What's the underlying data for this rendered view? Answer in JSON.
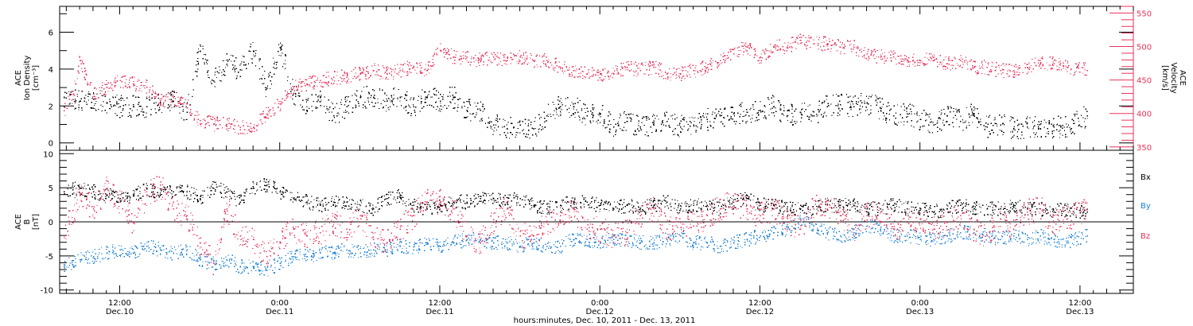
{
  "colors": {
    "black": "#000000",
    "pink": "#e8325a",
    "blue": "#1a7fd4"
  },
  "xaxis": {
    "title": "hours:minutes, Dec. 10, 2011 - Dec. 13, 2011",
    "ticks": [
      {
        "hour": 12,
        "time": "12:00",
        "date": "Dec.10"
      },
      {
        "hour": 24,
        "time": "0:00",
        "date": "Dec.11"
      },
      {
        "hour": 36,
        "time": "12:00",
        "date": "Dec.11"
      },
      {
        "hour": 48,
        "time": "0:00",
        "date": "Dec.12"
      },
      {
        "hour": 60,
        "time": "12:00",
        "date": "Dec.12"
      },
      {
        "hour": 72,
        "time": "0:00",
        "date": "Dec.13"
      },
      {
        "hour": 84,
        "time": "12:00",
        "date": "Dec.13"
      }
    ]
  },
  "top_panel": {
    "left_label": [
      "ACE",
      "Ion Density",
      "[cm⁻³]"
    ],
    "right_label": [
      "ACE",
      "Velocity",
      "[km/s]"
    ],
    "left_ticks": [
      "0",
      "2",
      "4",
      "6"
    ],
    "right_ticks": [
      "350",
      "400",
      "450",
      "500",
      "550"
    ]
  },
  "bottom_panel": {
    "left_label": [
      "ACE",
      "B",
      "[nT]"
    ],
    "left_ticks": [
      "-10",
      "-5",
      "0",
      "5",
      "10"
    ],
    "legend": [
      "Bx",
      "By",
      "Bz"
    ]
  },
  "chart_data": [
    {
      "type": "scatter",
      "x_unit": "hours since 2011-12-10 00:00 UT",
      "xlim": [
        7.5,
        88
      ],
      "ylim_left": [
        -0.4,
        7.4
      ],
      "ylim_right": [
        345,
        560
      ],
      "series": [
        {
          "name": "Ion Density",
          "axis": "left",
          "color": "#000000",
          "x": [
            7.8,
            9,
            10,
            11,
            12,
            13,
            14,
            15,
            16,
            17,
            18,
            19,
            20,
            21,
            22,
            23,
            24,
            25,
            26,
            27,
            28,
            29,
            30,
            31,
            32,
            33,
            34,
            35,
            36,
            37,
            38,
            39,
            40,
            41,
            42,
            43,
            44,
            45,
            46,
            47,
            48,
            49,
            50,
            51,
            52,
            53,
            54,
            55,
            56,
            57,
            58,
            59,
            60,
            61,
            62,
            63,
            64,
            65,
            66,
            67,
            68,
            69,
            70,
            71,
            72,
            73,
            74,
            75,
            76,
            77,
            78,
            79,
            80,
            81,
            82,
            83,
            84.5
          ],
          "y": [
            2.5,
            2.3,
            2.4,
            2.2,
            2.0,
            2.0,
            2.0,
            2.2,
            2.3,
            1.7,
            5.0,
            3.4,
            4.3,
            4.0,
            5.0,
            3.0,
            5.2,
            2.7,
            1.8,
            2.5,
            1.5,
            2.0,
            2.5,
            2.5,
            2.3,
            2.5,
            2.0,
            2.5,
            2.3,
            2.5,
            1.8,
            1.8,
            1.0,
            0.8,
            1.0,
            0.8,
            1.5,
            2.0,
            2.0,
            1.5,
            1.6,
            0.9,
            1.2,
            0.9,
            1.0,
            1.2,
            0.9,
            1.0,
            1.3,
            1.5,
            1.6,
            1.7,
            1.8,
            2.0,
            1.5,
            1.7,
            1.5,
            2.0,
            2.1,
            2.0,
            2.2,
            1.9,
            1.5,
            1.6,
            1.3,
            1.0,
            1.5,
            1.2,
            1.6,
            0.9,
            1.0,
            0.8,
            0.9,
            0.8,
            0.9,
            0.9,
            1.5
          ]
        },
        {
          "name": "Velocity",
          "axis": "right",
          "color": "#e8325a",
          "x": [
            7.8,
            8.5,
            9,
            10,
            11,
            12,
            13,
            14,
            15,
            16,
            17,
            18,
            19,
            20,
            21,
            22,
            23,
            24,
            25,
            26,
            27,
            28,
            29,
            30,
            31,
            32,
            33,
            34,
            35,
            36,
            37,
            38,
            39,
            40,
            41,
            42,
            43,
            44,
            45,
            46,
            47,
            48,
            49,
            50,
            51,
            52,
            53,
            54,
            55,
            56,
            57,
            58,
            59,
            60,
            61,
            62,
            63,
            64,
            65,
            66,
            67,
            68,
            69,
            70,
            71,
            72,
            73,
            74,
            75,
            76,
            77,
            78,
            79,
            80,
            81,
            82,
            83,
            84.5
          ],
          "y": [
            405,
            430,
            480,
            430,
            440,
            450,
            445,
            440,
            420,
            425,
            415,
            390,
            385,
            385,
            380,
            380,
            400,
            415,
            440,
            445,
            450,
            455,
            455,
            460,
            465,
            460,
            465,
            470,
            465,
            495,
            485,
            485,
            480,
            485,
            480,
            485,
            480,
            480,
            470,
            465,
            460,
            460,
            460,
            470,
            465,
            470,
            460,
            460,
            465,
            470,
            480,
            490,
            500,
            485,
            500,
            500,
            510,
            505,
            505,
            500,
            500,
            490,
            485,
            485,
            480,
            480,
            480,
            475,
            480,
            470,
            470,
            465,
            465,
            470,
            475,
            475,
            470,
            465
          ]
        }
      ]
    },
    {
      "type": "scatter",
      "x_unit": "hours since 2011-12-10 00:00 UT",
      "xlim": [
        7.5,
        88
      ],
      "ylim": [
        -10.5,
        10.5
      ],
      "series": [
        {
          "name": "Bx",
          "color": "#000000",
          "x": [
            7.8,
            9,
            10,
            11,
            12,
            13,
            14,
            15,
            16,
            17,
            18,
            19,
            20,
            21,
            22,
            23,
            24,
            25,
            26,
            27,
            28,
            29,
            30,
            31,
            32,
            33,
            34,
            35,
            36,
            37,
            38,
            39,
            40,
            41,
            42,
            43,
            44,
            45,
            46,
            47,
            48,
            49,
            50,
            51,
            52,
            53,
            54,
            55,
            56,
            57,
            58,
            59,
            60,
            61,
            62,
            63,
            64,
            65,
            66,
            67,
            68,
            69,
            70,
            71,
            72,
            73,
            74,
            75,
            76,
            77,
            78,
            79,
            80,
            81,
            82,
            83,
            84.5
          ],
          "y": [
            4.5,
            5.0,
            4.5,
            4.0,
            3.5,
            4.0,
            5.0,
            4.0,
            4.5,
            4.5,
            3.5,
            5.0,
            4.5,
            3.0,
            5.0,
            5.5,
            4.5,
            3.5,
            3.0,
            2.5,
            3.0,
            3.0,
            2.5,
            2.0,
            3.5,
            4.0,
            2.5,
            2.0,
            2.5,
            3.0,
            3.0,
            3.5,
            3.5,
            3.0,
            3.5,
            2.5,
            2.0,
            2.5,
            3.0,
            3.0,
            2.5,
            2.0,
            2.5,
            2.0,
            2.5,
            3.0,
            2.0,
            2.5,
            2.5,
            2.0,
            3.0,
            3.5,
            2.5,
            2.5,
            2.0,
            2.0,
            2.0,
            2.5,
            2.5,
            2.5,
            2.0,
            2.0,
            2.5,
            2.0,
            2.0,
            1.5,
            2.0,
            2.5,
            2.0,
            2.0,
            2.0,
            2.5,
            2.0,
            2.0,
            1.5,
            2.0,
            1.5
          ]
        },
        {
          "name": "By",
          "color": "#1a7fd4",
          "x": [
            7.8,
            9,
            10,
            11,
            12,
            13,
            14,
            15,
            16,
            17,
            18,
            19,
            20,
            21,
            22,
            23,
            24,
            25,
            26,
            27,
            28,
            29,
            30,
            31,
            32,
            33,
            34,
            35,
            36,
            37,
            38,
            39,
            40,
            41,
            42,
            43,
            44,
            45,
            46,
            47,
            48,
            49,
            50,
            51,
            52,
            53,
            54,
            55,
            56,
            57,
            58,
            59,
            60,
            61,
            62,
            63,
            64,
            65,
            66,
            67,
            68,
            69,
            70,
            71,
            72,
            73,
            74,
            75,
            76,
            77,
            78,
            79,
            80,
            81,
            82,
            83,
            84.5
          ],
          "y": [
            -6.5,
            -5.5,
            -5.0,
            -4.5,
            -4.0,
            -4.5,
            -3.5,
            -4.0,
            -4.5,
            -4.0,
            -5.5,
            -6.0,
            -5.5,
            -6.5,
            -6.5,
            -7.0,
            -6.0,
            -5.0,
            -5.0,
            -4.5,
            -4.5,
            -4.0,
            -4.5,
            -4.0,
            -4.0,
            -3.5,
            -4.0,
            -3.0,
            -3.5,
            -3.0,
            -2.5,
            -2.5,
            -3.0,
            -3.0,
            -3.5,
            -3.0,
            -3.5,
            -3.5,
            -2.5,
            -2.5,
            -3.0,
            -2.5,
            -2.5,
            -3.0,
            -3.0,
            -2.5,
            -2.0,
            -3.0,
            -3.0,
            -3.5,
            -3.0,
            -2.5,
            -2.0,
            -1.5,
            -1.0,
            0.5,
            -0.5,
            -1.5,
            -2.0,
            -1.5,
            -0.5,
            -1.0,
            -2.0,
            -2.0,
            -2.5,
            -2.5,
            -2.0,
            -1.5,
            -1.5,
            -2.0,
            -2.5,
            -2.0,
            -2.5,
            -2.0,
            -2.5,
            -3.0,
            -2.0
          ]
        },
        {
          "name": "Bz",
          "color": "#e8325a",
          "x": [
            7.8,
            9,
            10,
            11,
            12,
            13,
            14,
            15,
            16,
            17,
            18,
            19,
            20,
            21,
            22,
            23,
            24,
            25,
            26,
            27,
            28,
            29,
            30,
            31,
            32,
            33,
            34,
            35,
            36,
            37,
            38,
            39,
            40,
            41,
            42,
            43,
            44,
            45,
            46,
            47,
            48,
            49,
            50,
            51,
            52,
            53,
            54,
            55,
            56,
            57,
            58,
            59,
            60,
            61,
            62,
            63,
            64,
            65,
            66,
            67,
            68,
            69,
            70,
            71,
            72,
            73,
            74,
            75,
            76,
            77,
            78,
            79,
            80,
            81,
            82,
            83,
            84.5
          ],
          "y": [
            -2.0,
            4.0,
            2.0,
            5.0,
            3.0,
            0.0,
            4.0,
            5.5,
            2.0,
            1.0,
            -3.0,
            -6.0,
            2.0,
            -2.0,
            -2.5,
            -5.0,
            -3.0,
            -1.0,
            -2.0,
            -1.5,
            0.0,
            -1.0,
            1.0,
            -2.5,
            -3.0,
            -1.0,
            1.0,
            3.0,
            3.0,
            2.0,
            -2.0,
            -3.0,
            0.0,
            2.0,
            -2.0,
            -2.0,
            0.0,
            1.0,
            2.0,
            -1.0,
            -1.0,
            -2.0,
            -1.5,
            1.0,
            2.0,
            -1.0,
            0.0,
            -0.5,
            1.0,
            2.0,
            3.0,
            2.0,
            1.0,
            2.0,
            0.0,
            -1.0,
            2.0,
            2.5,
            1.0,
            -1.0,
            1.0,
            1.5,
            -1.0,
            0.0,
            0.5,
            -1.0,
            0.0,
            1.0,
            -1.0,
            -2.0,
            0.5,
            -1.0,
            1.5,
            2.0,
            0.0,
            0.5,
            2.0
          ]
        }
      ]
    }
  ]
}
